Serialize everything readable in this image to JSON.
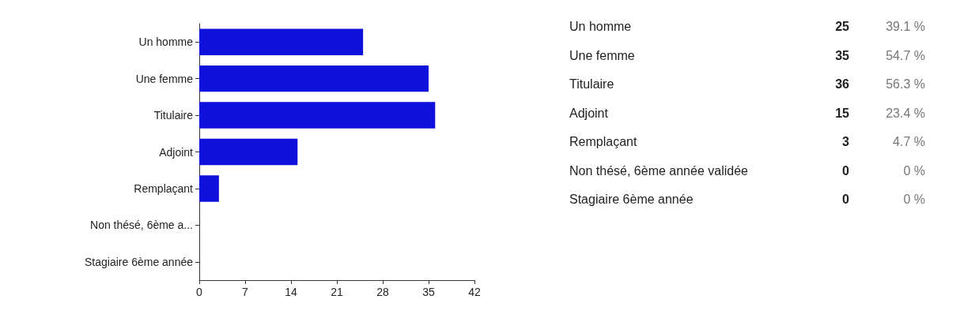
{
  "chart_data": [
    {
      "type": "bar",
      "orientation": "horizontal",
      "categories": [
        "Un homme",
        "Une femme",
        "Titulaire",
        "Adjoint",
        "Remplaçant",
        "Non thésé, 6ème a...",
        "Stagiaire 6ème année"
      ],
      "values": [
        25,
        35,
        36,
        15,
        3,
        0,
        0
      ],
      "color": "#1010dc",
      "xlim": [
        0,
        42
      ],
      "xticks": [
        0,
        7,
        14,
        21,
        28,
        35,
        42
      ]
    },
    {
      "type": "other",
      "annotations": [
        "Un homme",
        "25",
        "39.1 %",
        "Une femme",
        "35",
        "54.7 %",
        "Titulaire",
        "36",
        "56.3 %",
        "Adjoint",
        "15",
        "23.4 %",
        "Remplaçant",
        "3",
        "4.7 %",
        "Non thésé, 6ème année validée",
        "0",
        "0 %",
        "Stagiaire 6ème année",
        "0",
        "0 %"
      ]
    }
  ]
}
